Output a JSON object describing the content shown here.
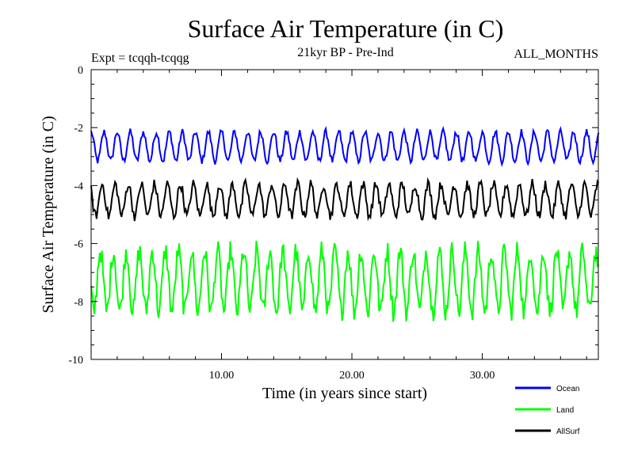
{
  "chart_data": {
    "type": "line",
    "title": "Surface Air Temperature (in C)",
    "subtitle": "21kyr BP - Pre-Ind",
    "expt_label": "Expt = tcqqh-tcqqg",
    "period_label": "ALL_MONTHS",
    "xlabel": "Time (in years since start)",
    "ylabel": "Surface Air Temperature (in C)",
    "xlim": [
      0,
      38.9
    ],
    "ylim": [
      -10,
      0
    ],
    "xticks": [
      10,
      20,
      30
    ],
    "xtick_labels": [
      "10.00",
      "20.00",
      "30.00"
    ],
    "yticks": [
      0,
      -2,
      -4,
      -6,
      -8,
      -10
    ],
    "ytick_labels": [
      "0",
      "-2",
      "-4",
      "-6",
      "-8",
      "-10"
    ],
    "x_minor_step": 2,
    "y_minor_step": 0.5,
    "grid": false,
    "legend_position": "bottom-right",
    "seasonal_cycle_years": 1,
    "samples_per_year": 12,
    "series": [
      {
        "name": "Ocean",
        "color": "#0000ff",
        "mean": -2.65,
        "amplitude": 0.5,
        "noise": 0.12,
        "phase": 0.0
      },
      {
        "name": "Land",
        "color": "#00ff00",
        "mean": -7.3,
        "amplitude": 1.05,
        "noise": 0.38,
        "phase": 0.3
      },
      {
        "name": "AllSurf",
        "color": "#000000",
        "mean": -4.5,
        "amplitude": 0.55,
        "noise": 0.18,
        "phase": 0.15
      }
    ]
  }
}
